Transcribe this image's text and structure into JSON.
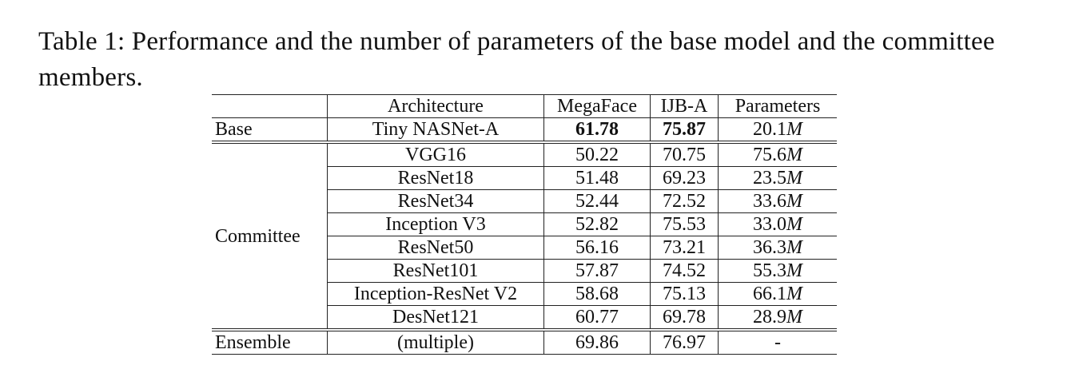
{
  "caption": "Table 1: Performance and the number of parameters of the base model and the committee members.",
  "table": {
    "headers": {
      "group": "",
      "architecture": "Architecture",
      "megaface": "MegaFace",
      "ijba": "IJB-A",
      "parameters": "Parameters"
    },
    "base": {
      "group": "Base",
      "architecture": "Tiny NASNet-A",
      "megaface": "61.78",
      "ijba": "75.87",
      "params_num": "20.1",
      "params_unit": "M"
    },
    "committee_label": "Committee",
    "committee": [
      {
        "architecture": "VGG16",
        "megaface": "50.22",
        "ijba": "70.75",
        "params_num": "75.6",
        "params_unit": "M"
      },
      {
        "architecture": "ResNet18",
        "megaface": "51.48",
        "ijba": "69.23",
        "params_num": "23.5",
        "params_unit": "M"
      },
      {
        "architecture": "ResNet34",
        "megaface": "52.44",
        "ijba": "72.52",
        "params_num": "33.6",
        "params_unit": "M"
      },
      {
        "architecture": "Inception V3",
        "megaface": "52.82",
        "ijba": "75.53",
        "params_num": "33.0",
        "params_unit": "M"
      },
      {
        "architecture": "ResNet50",
        "megaface": "56.16",
        "ijba": "73.21",
        "params_num": "36.3",
        "params_unit": "M"
      },
      {
        "architecture": "ResNet101",
        "megaface": "57.87",
        "ijba": "74.52",
        "params_num": "55.3",
        "params_unit": "M"
      },
      {
        "architecture": "Inception-ResNet V2",
        "megaface": "58.68",
        "ijba": "75.13",
        "params_num": "66.1",
        "params_unit": "M"
      },
      {
        "architecture": "DesNet121",
        "megaface": "60.77",
        "ijba": "69.78",
        "params_num": "28.9",
        "params_unit": "M"
      }
    ],
    "ensemble": {
      "group": "Ensemble",
      "architecture": "(multiple)",
      "megaface": "69.86",
      "ijba": "76.97",
      "parameters": "-"
    }
  }
}
